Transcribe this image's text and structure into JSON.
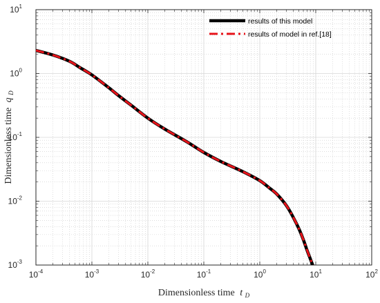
{
  "chart_data": {
    "type": "line",
    "xscale": "log",
    "yscale": "log",
    "xlim": [
      0.0001,
      100
    ],
    "ylim": [
      0.001,
      10
    ],
    "grid": true,
    "legend_position": "top-right",
    "xlabel": "Dimensionless time",
    "xlabel_var": "t",
    "xlabel_sub": "D",
    "ylabel": "Dimensionless time",
    "ylabel_var": "q",
    "ylabel_sub": "D",
    "x_ticks": [
      {
        "base": "10",
        "exp": "-4",
        "value": 0.0001
      },
      {
        "base": "10",
        "exp": "-3",
        "value": 0.001
      },
      {
        "base": "10",
        "exp": "-2",
        "value": 0.01
      },
      {
        "base": "10",
        "exp": "-1",
        "value": 0.1
      },
      {
        "base": "10",
        "exp": "0",
        "value": 1
      },
      {
        "base": "10",
        "exp": "1",
        "value": 10
      },
      {
        "base": "10",
        "exp": "2",
        "value": 100
      }
    ],
    "y_ticks": [
      {
        "base": "10",
        "exp": "-3",
        "value": 0.001
      },
      {
        "base": "10",
        "exp": "-2",
        "value": 0.01
      },
      {
        "base": "10",
        "exp": "-1",
        "value": 0.1
      },
      {
        "base": "10",
        "exp": "0",
        "value": 1
      },
      {
        "base": "10",
        "exp": "1",
        "value": 10
      }
    ],
    "series": [
      {
        "name": "results of this model",
        "color": "#000000",
        "style": "solid",
        "x": [
          0.0001,
          0.0002,
          0.0004,
          0.0006,
          0.001,
          0.002,
          0.003,
          0.005,
          0.01,
          0.02,
          0.05,
          0.1,
          0.2,
          0.5,
          1,
          1.5,
          2,
          3,
          4,
          5,
          6,
          7,
          8,
          9,
          10
        ],
        "y": [
          2.3,
          1.95,
          1.55,
          1.25,
          0.95,
          0.6,
          0.45,
          0.32,
          0.2,
          0.135,
          0.085,
          0.058,
          0.042,
          0.029,
          0.021,
          0.016,
          0.013,
          0.0085,
          0.0055,
          0.0037,
          0.0025,
          0.0017,
          0.00125,
          0.00095,
          0.0007
        ]
      },
      {
        "name": "results of model in ref.[18]",
        "color": "#e8141b",
        "style": "dashdot",
        "x": [
          0.0001,
          0.0002,
          0.0004,
          0.0006,
          0.001,
          0.002,
          0.003,
          0.005,
          0.01,
          0.02,
          0.05,
          0.1,
          0.2,
          0.5,
          1,
          1.5,
          2,
          3,
          4,
          5,
          6,
          7,
          8,
          9,
          10
        ],
        "y": [
          2.3,
          1.95,
          1.55,
          1.25,
          0.95,
          0.6,
          0.45,
          0.32,
          0.2,
          0.135,
          0.085,
          0.058,
          0.042,
          0.029,
          0.021,
          0.016,
          0.013,
          0.0085,
          0.0055,
          0.0037,
          0.0025,
          0.0017,
          0.00125,
          0.00095,
          0.0007
        ]
      }
    ]
  }
}
